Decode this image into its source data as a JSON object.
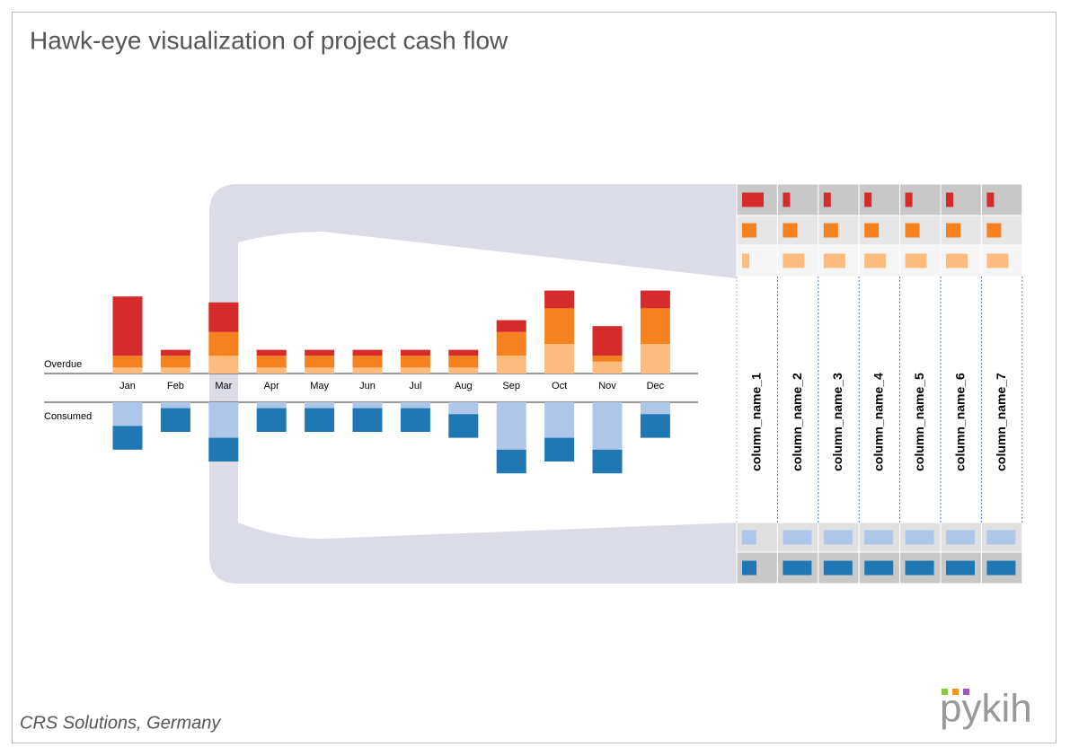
{
  "header": {
    "title": "Hawk-eye visualization of project cash flow"
  },
  "chart_data": {
    "type": "bar",
    "categories": [
      "Jan",
      "Feb",
      "Mar",
      "Apr",
      "May",
      "Jun",
      "Jul",
      "Aug",
      "Sep",
      "Oct",
      "Nov",
      "Dec"
    ],
    "overdue": {
      "label": "Overdue",
      "series": [
        {
          "color": "#fdbb7d",
          "values": [
            1,
            1,
            3,
            1,
            1,
            1,
            1,
            1,
            3,
            5,
            2,
            5
          ]
        },
        {
          "color": "#f5821f",
          "values": [
            2,
            2,
            4,
            2,
            2,
            2,
            2,
            2,
            4,
            6,
            1,
            6
          ]
        },
        {
          "color": "#d62b2b",
          "values": [
            10,
            1,
            5,
            1,
            1,
            1,
            1,
            1,
            2,
            3,
            5,
            3
          ]
        }
      ]
    },
    "consumed": {
      "label": "Consumed",
      "series": [
        {
          "color": "#aec7e8",
          "values": [
            4,
            1,
            6,
            1,
            1,
            1,
            1,
            2,
            8,
            6,
            8,
            2
          ]
        },
        {
          "color": "#1f77b4",
          "values": [
            4,
            4,
            4,
            4,
            4,
            4,
            4,
            4,
            4,
            4,
            4,
            4
          ]
        }
      ]
    }
  },
  "matrix": {
    "columns": [
      "column_name_1",
      "column_name_2",
      "column_name_3",
      "column_name_4",
      "column_name_5",
      "column_name_6",
      "column_name_7"
    ],
    "rows": [
      {
        "color": "#d62b2b",
        "values": [
          3,
          1,
          1,
          1,
          1,
          1,
          1
        ]
      },
      {
        "color": "#f5821f",
        "values": [
          2,
          2,
          2,
          2,
          2,
          2,
          2
        ]
      },
      {
        "color": "#fdbb7d",
        "values": [
          1,
          3,
          3,
          3,
          3,
          3,
          3
        ]
      },
      {
        "color": "#aec7e8",
        "values": [
          2,
          4,
          4,
          4,
          4,
          4,
          4
        ]
      },
      {
        "color": "#1f77b4",
        "values": [
          2,
          4,
          4,
          4,
          4,
          4,
          4
        ]
      }
    ]
  },
  "footer": {
    "text": "CRS Solutions, Germany",
    "logo": "pykih"
  }
}
